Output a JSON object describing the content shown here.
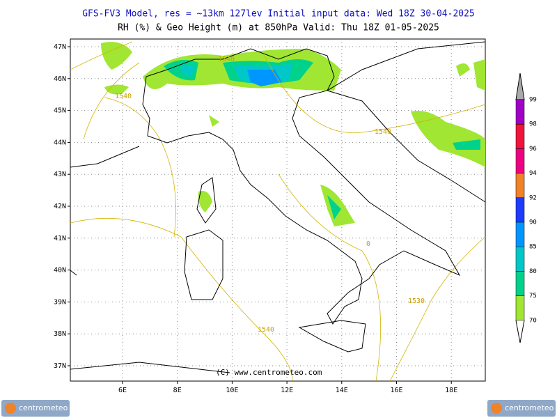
{
  "header": {
    "line1": "GFS-FV3 Model, res = ~13km 127lev   Initial input data: Wed 18Z 30-04-2025",
    "line2": "RH (%) & Geo Height (m) at 850hPa  Valid: Thu 18Z 01-05-2025"
  },
  "map": {
    "lat_labels": [
      "47N",
      "46N",
      "45N",
      "44N",
      "43N",
      "42N",
      "41N",
      "40N",
      "39N",
      "38N",
      "37N"
    ],
    "lon_labels": [
      "6E",
      "8E",
      "10E",
      "12E",
      "14E",
      "16E",
      "18E"
    ],
    "contour_labels": [
      "1540",
      "1540",
      "1540",
      "1530",
      "1540",
      "0"
    ],
    "credit": "(C) www.centrometeo.com"
  },
  "colorbar": {
    "labels": [
      99,
      98,
      96,
      94,
      92,
      90,
      85,
      80,
      75,
      70
    ],
    "colors": [
      "#a000c8",
      "#f0143c",
      "#f00082",
      "#f08228",
      "#1e3cff",
      "#0096ff",
      "#00c8c8",
      "#00d28c",
      "#a0e632"
    ]
  },
  "logos": [
    "centrometeo",
    "centrometeo"
  ]
}
